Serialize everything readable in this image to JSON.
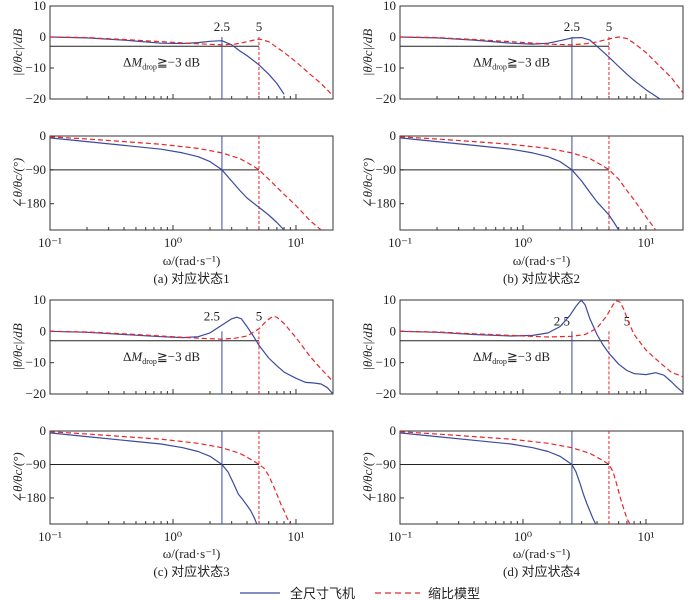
{
  "chart_data": [
    {
      "type": "line",
      "caption": "(a) 对应状态1",
      "xlabel": "ω/(rad·s⁻¹)",
      "xscale": "log",
      "xlim": [
        0.1,
        20
      ],
      "xticks": [
        "10⁻¹",
        "10⁰",
        "10¹"
      ],
      "magnitude": {
        "ylabel": "|θ/θc|/dB",
        "ylim": [
          -20,
          10
        ],
        "yticks": [
          10,
          0,
          -10,
          -20
        ],
        "reference_line": -3,
        "annotation": "ΔM_drop ≥ −3 dB",
        "series": [
          {
            "name": "全尺寸飞机",
            "x": [
              0.1,
              0.2,
              0.4,
              0.8,
              1.2,
              1.6,
              2.0,
              2.5,
              3.0,
              3.5,
              4.0,
              5.0,
              6.0,
              7.0,
              8.0
            ],
            "y": [
              0,
              -0.3,
              -1,
              -2,
              -2.1,
              -1.8,
              -1.4,
              -1.2,
              -2.5,
              -4.5,
              -6,
              -9,
              -12,
              -15,
              -18.5
            ]
          },
          {
            "name": "缩比模型",
            "x": [
              0.1,
              0.2,
              0.4,
              0.8,
              1.6,
              2.5,
              3.2,
              4.0,
              5.0,
              6.0,
              8.0,
              10.0,
              13.0,
              16.0,
              20.0
            ],
            "y": [
              0,
              -0.2,
              -0.8,
              -1.5,
              -2.2,
              -2.5,
              -2.3,
              -1.5,
              -0.6,
              -1.5,
              -5,
              -8,
              -12,
              -15,
              -19
            ]
          }
        ],
        "markers": [
          {
            "label": "2.5",
            "x": 2.5
          },
          {
            "label": "5",
            "x": 5
          }
        ]
      },
      "phase": {
        "ylabel": "∠θ/θc/(°)",
        "ylim": [
          -250,
          0
        ],
        "yticks": [
          0,
          -90,
          -180
        ],
        "reference_line": -90,
        "series": [
          {
            "name": "全尺寸飞机",
            "x": [
              0.1,
              0.2,
              0.4,
              0.8,
              1.2,
              1.6,
              2.0,
              2.5,
              3.0,
              3.5,
              4.0,
              5.0,
              6.0,
              7.0,
              8.0
            ],
            "y": [
              -5,
              -15,
              -25,
              -35,
              -45,
              -55,
              -68,
              -90,
              -120,
              -145,
              -165,
              -190,
              -210,
              -230,
              -250
            ]
          },
          {
            "name": "缩比模型",
            "x": [
              0.1,
              0.2,
              0.4,
              0.8,
              1.6,
              2.5,
              3.5,
              4.5,
              5.0,
              6.0,
              8.0,
              10.0,
              13.0,
              16.0
            ],
            "y": [
              -2,
              -8,
              -15,
              -22,
              -33,
              -45,
              -60,
              -80,
              -90,
              -115,
              -155,
              -185,
              -225,
              -250
            ]
          }
        ],
        "markers": [
          {
            "x": 2.5
          },
          {
            "x": 5
          }
        ]
      }
    },
    {
      "type": "line",
      "caption": "(b) 对应状态2",
      "xlabel": "ω/(rad·s⁻¹)",
      "xscale": "log",
      "xlim": [
        0.1,
        20
      ],
      "xticks": [
        "10⁻¹",
        "10⁰",
        "10¹"
      ],
      "magnitude": {
        "ylabel": "|θ/θc|/dB",
        "ylim": [
          -20,
          10
        ],
        "yticks": [
          10,
          0,
          -10,
          -20
        ],
        "reference_line": -3,
        "annotation": "ΔM_drop ≥ −3 dB",
        "series": [
          {
            "name": "全尺寸飞机",
            "x": [
              0.1,
              0.2,
              0.4,
              0.8,
              1.2,
              1.6,
              2.0,
              2.5,
              3.0,
              3.5,
              4.0,
              5.0,
              6.0,
              7.0,
              8.0,
              10.0,
              13.0
            ],
            "y": [
              0,
              -0.3,
              -1,
              -2,
              -2.3,
              -2,
              -1.2,
              -0.3,
              -0.2,
              -1,
              -3,
              -6.5,
              -9.5,
              -12,
              -14,
              -17,
              -20
            ]
          },
          {
            "name": "缩比模型",
            "x": [
              0.1,
              0.2,
              0.4,
              0.8,
              1.6,
              2.5,
              3.2,
              4.0,
              5.0,
              6.0,
              7.0,
              8.0,
              10.0,
              13.0,
              16.0,
              20.0
            ],
            "y": [
              0,
              -0.2,
              -0.8,
              -1.5,
              -2.3,
              -2.5,
              -2.2,
              -1.6,
              -0.6,
              0,
              -0.5,
              -2,
              -5,
              -9.5,
              -13,
              -18
            ]
          }
        ],
        "markers": [
          {
            "label": "2.5",
            "x": 2.5
          },
          {
            "label": "5",
            "x": 5
          }
        ]
      },
      "phase": {
        "ylabel": "∠θ/θc/(°)",
        "ylim": [
          -250,
          0
        ],
        "yticks": [
          0,
          -90,
          -180
        ],
        "reference_line": -90,
        "series": [
          {
            "name": "全尺寸飞机",
            "x": [
              0.1,
              0.2,
              0.4,
              0.8,
              1.2,
              1.6,
              2.0,
              2.5,
              3.0,
              3.5,
              4.0,
              5.0,
              5.5,
              6.0
            ],
            "y": [
              -5,
              -15,
              -25,
              -35,
              -45,
              -55,
              -68,
              -90,
              -120,
              -150,
              -175,
              -210,
              -230,
              -250
            ]
          },
          {
            "name": "缩比模型",
            "x": [
              0.1,
              0.2,
              0.4,
              0.8,
              1.6,
              2.5,
              3.5,
              4.5,
              5.0,
              6.0,
              7.0,
              8.0,
              10.0,
              12.0
            ],
            "y": [
              -2,
              -8,
              -15,
              -22,
              -33,
              -45,
              -60,
              -80,
              -90,
              -115,
              -145,
              -170,
              -215,
              -250
            ]
          }
        ],
        "markers": [
          {
            "x": 2.5
          },
          {
            "x": 5
          }
        ]
      }
    },
    {
      "type": "line",
      "caption": "(c) 对应状态3",
      "xlabel": "ω/(rad·s⁻¹)",
      "xscale": "log",
      "xlim": [
        0.1,
        20
      ],
      "xticks": [
        "10⁻¹",
        "10⁰",
        "10¹"
      ],
      "magnitude": {
        "ylabel": "|θ/θc|/dB",
        "ylim": [
          -20,
          10
        ],
        "yticks": [
          10,
          0,
          -10,
          -20
        ],
        "reference_line": -3,
        "annotation": "ΔM_drop ≥ −3 dB",
        "series": [
          {
            "name": "全尺寸飞机",
            "x": [
              0.1,
              0.2,
              0.4,
              0.8,
              1.2,
              1.6,
              2.0,
              2.5,
              3.0,
              3.3,
              3.6,
              4.0,
              4.5,
              5.0,
              6.0,
              7.0,
              8.0,
              10.0,
              12.0,
              14.0,
              16.0,
              18.0,
              20.0
            ],
            "y": [
              0,
              -0.3,
              -1,
              -1.7,
              -2,
              -1.7,
              -0.5,
              2,
              4,
              4.5,
              4,
              1.5,
              -1.5,
              -4.5,
              -8.5,
              -11,
              -13,
              -15,
              -16.3,
              -16.5,
              -16.8,
              -18,
              -20
            ]
          },
          {
            "name": "缩比模型",
            "x": [
              0.1,
              0.2,
              0.4,
              0.8,
              1.6,
              2.5,
              3.2,
              4.0,
              5.0,
              5.8,
              6.5,
              7.0,
              8.0,
              10.0,
              13.0,
              16.0,
              20.0
            ],
            "y": [
              0,
              -0.2,
              -0.8,
              -1.5,
              -2.2,
              -2.5,
              -2.2,
              -1.5,
              0.8,
              3.5,
              4.8,
              4.5,
              2.5,
              -2,
              -8,
              -12,
              -16
            ]
          }
        ],
        "markers": [
          {
            "label": "2.5",
            "x": 2.5
          },
          {
            "label": "5",
            "x": 5
          }
        ]
      },
      "phase": {
        "ylabel": "∠θ/θc/(°)",
        "ylim": [
          -250,
          0
        ],
        "yticks": [
          0,
          -90,
          -180
        ],
        "reference_line": -90,
        "series": [
          {
            "name": "全尺寸飞机",
            "x": [
              0.1,
              0.2,
              0.4,
              0.8,
              1.2,
              1.6,
              2.0,
              2.5,
              2.8,
              3.1,
              3.4,
              3.7,
              4.0,
              4.3,
              4.6,
              4.8
            ],
            "y": [
              -5,
              -15,
              -25,
              -35,
              -45,
              -55,
              -68,
              -90,
              -110,
              -140,
              -170,
              -185,
              -200,
              -215,
              -235,
              -250
            ]
          },
          {
            "name": "缩比模型",
            "x": [
              0.1,
              0.2,
              0.4,
              0.8,
              1.6,
              2.5,
              3.5,
              4.5,
              5.0,
              5.5,
              6.0,
              6.5,
              7.0,
              7.5,
              8.0,
              8.5,
              9.0
            ],
            "y": [
              -2,
              -8,
              -15,
              -22,
              -33,
              -45,
              -60,
              -80,
              -90,
              -100,
              -120,
              -145,
              -170,
              -195,
              -215,
              -235,
              -250
            ]
          }
        ],
        "markers": [
          {
            "x": 2.5
          },
          {
            "x": 5
          }
        ]
      }
    },
    {
      "type": "line",
      "caption": "(d) 对应状态4",
      "xlabel": "ω/(rad·s⁻¹)",
      "xscale": "log",
      "xlim": [
        0.1,
        20
      ],
      "xticks": [
        "10⁻¹",
        "10⁰",
        "10¹"
      ],
      "magnitude": {
        "ylabel": "|θ/θc|/dB",
        "ylim": [
          -20,
          10
        ],
        "yticks": [
          10,
          0,
          -10,
          -20
        ],
        "reference_line": -3,
        "annotation": "ΔM_drop ≥ −3 dB",
        "series": [
          {
            "name": "全尺寸飞机",
            "x": [
              0.1,
              0.2,
              0.4,
              0.8,
              1.2,
              1.6,
              2.0,
              2.4,
              2.7,
              2.9,
              3.0,
              3.2,
              3.5,
              4.0,
              4.5,
              5.0,
              6.0,
              7.0,
              8.0,
              10.0,
              12.0,
              14.0,
              16.0,
              18.0,
              20.0
            ],
            "y": [
              0,
              -0.3,
              -1,
              -1.5,
              -1.3,
              -0.5,
              1.5,
              5,
              8,
              9.5,
              9.8,
              8.5,
              4,
              -1,
              -4.5,
              -7,
              -10.5,
              -12.5,
              -13.5,
              -13.8,
              -13.2,
              -14,
              -16,
              -18,
              -19.5
            ]
          },
          {
            "name": "缩比模型",
            "x": [
              0.1,
              0.2,
              0.4,
              0.8,
              1.6,
              2.5,
              3.2,
              4.0,
              4.8,
              5.4,
              5.8,
              6.2,
              6.6,
              7.2,
              8.0,
              10.0,
              13.0,
              16.0,
              20.0
            ],
            "y": [
              0,
              -0.2,
              -0.8,
              -1.3,
              -1.8,
              -1.6,
              -1,
              1,
              5,
              8.5,
              9.8,
              9.2,
              7,
              3,
              -1,
              -6,
              -10,
              -13,
              -14.5
            ]
          }
        ],
        "markers": [
          {
            "label": "2.5",
            "x": 2.5
          },
          {
            "label": "5",
            "x": 5
          }
        ]
      },
      "phase": {
        "ylabel": "∠θ/θc/(°)",
        "ylim": [
          -250,
          0
        ],
        "yticks": [
          0,
          -90,
          -180
        ],
        "reference_line": -90,
        "series": [
          {
            "name": "全尺寸飞机",
            "x": [
              0.1,
              0.2,
              0.4,
              0.8,
              1.2,
              1.6,
              2.0,
              2.5,
              2.7,
              2.9,
              3.1,
              3.3,
              3.5,
              3.7,
              3.9
            ],
            "y": [
              -5,
              -15,
              -25,
              -35,
              -45,
              -55,
              -68,
              -90,
              -110,
              -140,
              -170,
              -195,
              -215,
              -235,
              -250
            ]
          },
          {
            "name": "缩比模型",
            "x": [
              0.1,
              0.2,
              0.4,
              0.8,
              1.6,
              2.5,
              3.5,
              4.5,
              5.0,
              5.4,
              5.8,
              6.2,
              6.6,
              7.0,
              7.4
            ],
            "y": [
              -2,
              -8,
              -15,
              -22,
              -33,
              -45,
              -60,
              -80,
              -90,
              -110,
              -145,
              -180,
              -210,
              -235,
              -250
            ]
          }
        ],
        "markers": [
          {
            "x": 2.5
          },
          {
            "x": 5
          }
        ]
      }
    }
  ],
  "legend": {
    "entries": [
      {
        "name": "全尺寸飞机",
        "style": "solid",
        "color": "#3b4a9e"
      },
      {
        "name": "缩比模型",
        "style": "dashed",
        "color": "#e8262a"
      }
    ],
    "placement": "bottom-center"
  },
  "colors": {
    "full_scale": "#3b4a9e",
    "scaled": "#e8262a",
    "axis": "#333333",
    "reference": "#222222"
  }
}
